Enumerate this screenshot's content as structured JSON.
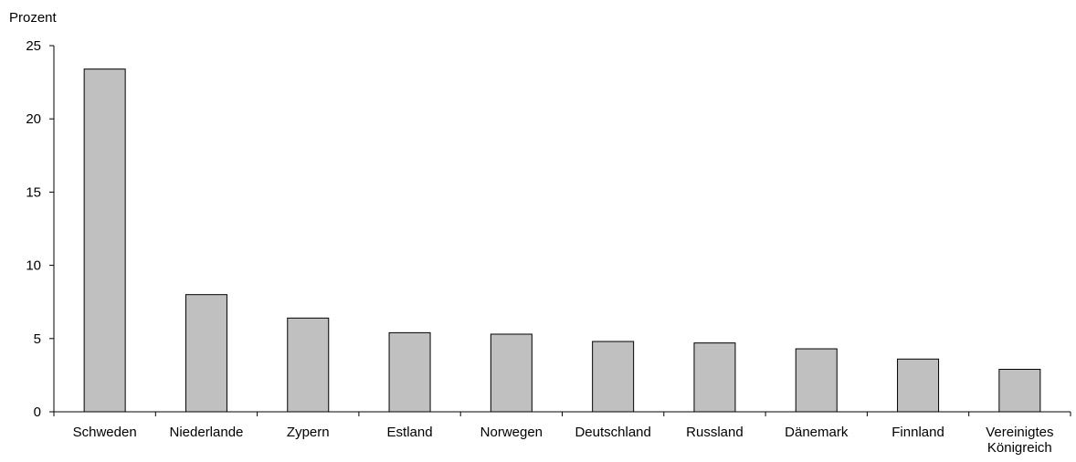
{
  "chart_data": {
    "type": "bar",
    "y_label": "Prozent",
    "categories": [
      "Schweden",
      "Niederlande",
      "Zypern",
      "Estland",
      "Norwegen",
      "Deutschland",
      "Russland",
      "Dänemark",
      "Finnland",
      "Vereinigtes Königreich"
    ],
    "values": [
      23.4,
      8.0,
      6.4,
      5.4,
      5.3,
      4.8,
      4.7,
      4.3,
      3.6,
      2.9
    ],
    "color": "#c0c0c0",
    "ylim": [
      0,
      25
    ],
    "yticks": [
      0,
      5,
      10,
      15,
      20,
      25
    ],
    "grid": false
  }
}
